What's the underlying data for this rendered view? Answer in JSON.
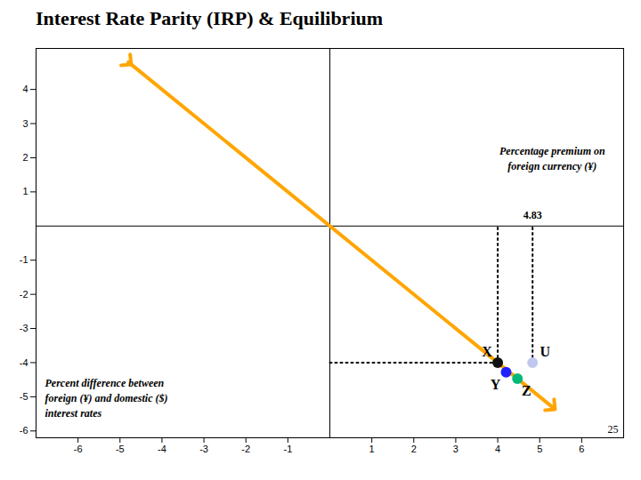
{
  "chart_data": {
    "type": "scatter",
    "title": "Interest Rate Parity (IRP) & Equilibrium",
    "xlim": [
      -7.0,
      7.0
    ],
    "ylim": [
      -6.2,
      5.2
    ],
    "xticks": [
      -6,
      -5,
      -4,
      -3,
      -2,
      -1,
      1,
      2,
      3,
      4,
      5,
      6
    ],
    "yticks": [
      -6,
      -5,
      -4,
      -3,
      -2,
      -1,
      1,
      2,
      3,
      4
    ],
    "tick_labels": true,
    "series": [
      {
        "type": "line",
        "x": [
          -4.8,
          5.3
        ],
        "values": [
          4.8,
          -5.3
        ],
        "color": "#FFA500",
        "marker": "arrow",
        "line_style": "solid"
      },
      {
        "type": "line",
        "x": [
          4.0,
          4.0
        ],
        "values": [
          -4.0,
          0
        ],
        "color": "black",
        "line_style": "dotted"
      },
      {
        "type": "line",
        "x": [
          4.83,
          4.83
        ],
        "values": [
          -4.0,
          0
        ],
        "color": "black",
        "line_style": "dotted"
      },
      {
        "type": "line",
        "x": [
          0,
          4.0
        ],
        "values": [
          -4.0,
          -4.0
        ],
        "color": "black",
        "line_style": "dotted"
      },
      {
        "name": "X",
        "type": "scatter",
        "x": [
          4.0
        ],
        "values": [
          -4.0
        ],
        "color": "#111111",
        "marker": "circle"
      },
      {
        "name": "U",
        "type": "scatter",
        "x": [
          4.83
        ],
        "values": [
          -4.0
        ],
        "color": "#c0c8f0",
        "marker": "circle"
      },
      {
        "name": "Y",
        "type": "scatter",
        "x": [
          4.2
        ],
        "values": [
          -4.28
        ],
        "color": "#2020ff",
        "marker": "circle"
      },
      {
        "name": "Z",
        "type": "scatter",
        "x": [
          4.47
        ],
        "values": [
          -4.47
        ],
        "color": "#00b878",
        "marker": "circle"
      }
    ],
    "annotations": [
      {
        "text": "4.83",
        "x": 4.83
      },
      {
        "text": "Percentage premium on\nforeign currency (¥)",
        "x": 5.3,
        "y": 2.0
      },
      {
        "text": "Percent difference between\nforeign (¥) and domestic ($)\ninterest rates"
      },
      {
        "text": "25"
      }
    ]
  }
}
